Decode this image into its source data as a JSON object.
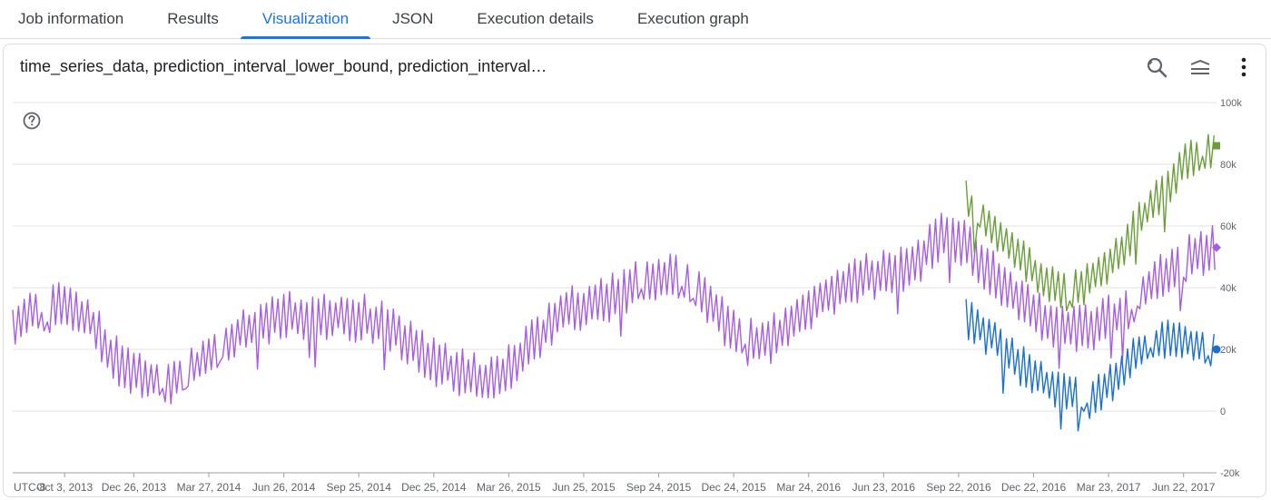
{
  "tabs": [
    {
      "label": "Job information",
      "active": false
    },
    {
      "label": "Results",
      "active": false
    },
    {
      "label": "Visualization",
      "active": true
    },
    {
      "label": "JSON",
      "active": false
    },
    {
      "label": "Execution details",
      "active": false
    },
    {
      "label": "Execution graph",
      "active": false
    }
  ],
  "chart": {
    "title": "time_series_data, prediction_interval_lower_bound, prediction_interval…",
    "toolbar_icons": [
      "reset-zoom-icon",
      "legend-toggle-icon",
      "more-vert-icon"
    ],
    "help_icon": "help-icon",
    "timezone_label": "UTC-8"
  },
  "colors": {
    "time_series_data": "#a55ee3",
    "prediction_interval_lower_bound": "#1a6fd1",
    "prediction_interval_upper_bound": "#6a9e3a",
    "grid": "#e0e0e0",
    "axis_text": "#5f6368",
    "active_tab": "#1a73e8"
  },
  "chart_data": {
    "type": "line",
    "title": "time_series_data, prediction_interval_lower_bound, prediction_interval…",
    "xlabel": "",
    "ylabel": "",
    "x_tick_labels": [
      "Oct 3, 2013",
      "Dec 26, 2013",
      "Mar 27, 2014",
      "Jun 26, 2014",
      "Sep 25, 2014",
      "Dec 25, 2014",
      "Mar 26, 2015",
      "Jun 25, 2015",
      "Sep 24, 2015",
      "Dec 24, 2015",
      "Mar 24, 2016",
      "Jun 23, 2016",
      "Sep 22, 2016",
      "Dec 22, 2016",
      "Mar 23, 2017",
      "Jun 22, 2017"
    ],
    "x_range": [
      "2013-08-01",
      "2017-08-01"
    ],
    "y_tick_labels": [
      "-20k",
      "0",
      "20k",
      "40k",
      "60k",
      "80k",
      "100k"
    ],
    "y_ticks": [
      -20000,
      0,
      20000,
      40000,
      60000,
      80000,
      100000
    ],
    "ylim": [
      -20000,
      100000
    ],
    "grid": true,
    "legend": "none",
    "series": [
      {
        "key": "time_series_data",
        "marker": "diamond",
        "x": [
          "2013-08-01",
          "2013-09-01",
          "2013-10-01",
          "2013-11-01",
          "2013-12-01",
          "2014-01-01",
          "2014-02-01",
          "2014-03-01",
          "2014-04-01",
          "2014-05-01",
          "2014-06-01",
          "2014-07-01",
          "2014-08-01",
          "2014-09-01",
          "2014-10-01",
          "2014-11-01",
          "2014-12-01",
          "2015-01-01",
          "2015-02-01",
          "2015-03-01",
          "2015-04-01",
          "2015-05-01",
          "2015-06-01",
          "2015-07-01",
          "2015-08-01",
          "2015-09-01",
          "2015-10-01",
          "2015-11-01",
          "2015-12-01",
          "2016-01-01",
          "2016-02-01",
          "2016-03-01",
          "2016-04-01",
          "2016-05-01",
          "2016-06-01",
          "2016-07-01",
          "2016-08-01",
          "2016-09-01",
          "2016-10-01",
          "2016-11-01",
          "2016-12-01",
          "2017-01-01",
          "2017-02-01",
          "2017-03-01",
          "2017-04-01",
          "2017-05-01",
          "2017-06-01",
          "2017-07-01",
          "2017-08-01"
        ],
        "values": [
          29000,
          33000,
          34000,
          30000,
          17000,
          12000,
          9000,
          12000,
          19000,
          25000,
          29000,
          31000,
          31000,
          31000,
          30000,
          27000,
          21000,
          15000,
          12000,
          10000,
          15000,
          24000,
          32000,
          34000,
          37000,
          41000,
          44000,
          42000,
          33000,
          23000,
          22000,
          28000,
          35000,
          40000,
          43000,
          45000,
          48000,
          57000,
          54000,
          45000,
          37000,
          30000,
          26000,
          27000,
          31000,
          38000,
          45000,
          50000,
          53000
        ]
      },
      {
        "key": "prediction_interval_upper_bound",
        "marker": "square",
        "x": [
          "2016-10-01",
          "2016-11-01",
          "2016-12-01",
          "2017-01-01",
          "2017-02-01",
          "2017-03-01",
          "2017-04-01",
          "2017-05-01",
          "2017-06-01",
          "2017-07-01",
          "2017-08-01"
        ],
        "values": [
          68000,
          60000,
          52000,
          42000,
          38000,
          42000,
          50000,
          62000,
          72000,
          82000,
          86000
        ]
      },
      {
        "key": "prediction_interval_lower_bound",
        "marker": "circle",
        "x": [
          "2016-10-01",
          "2016-11-01",
          "2016-12-01",
          "2017-01-01",
          "2017-02-01",
          "2017-03-01",
          "2017-04-01",
          "2017-05-01",
          "2017-06-01",
          "2017-07-01",
          "2017-08-01"
        ],
        "values": [
          30000,
          24000,
          16000,
          10000,
          6000,
          4000,
          10000,
          20000,
          24000,
          22000,
          20000
        ]
      }
    ]
  }
}
